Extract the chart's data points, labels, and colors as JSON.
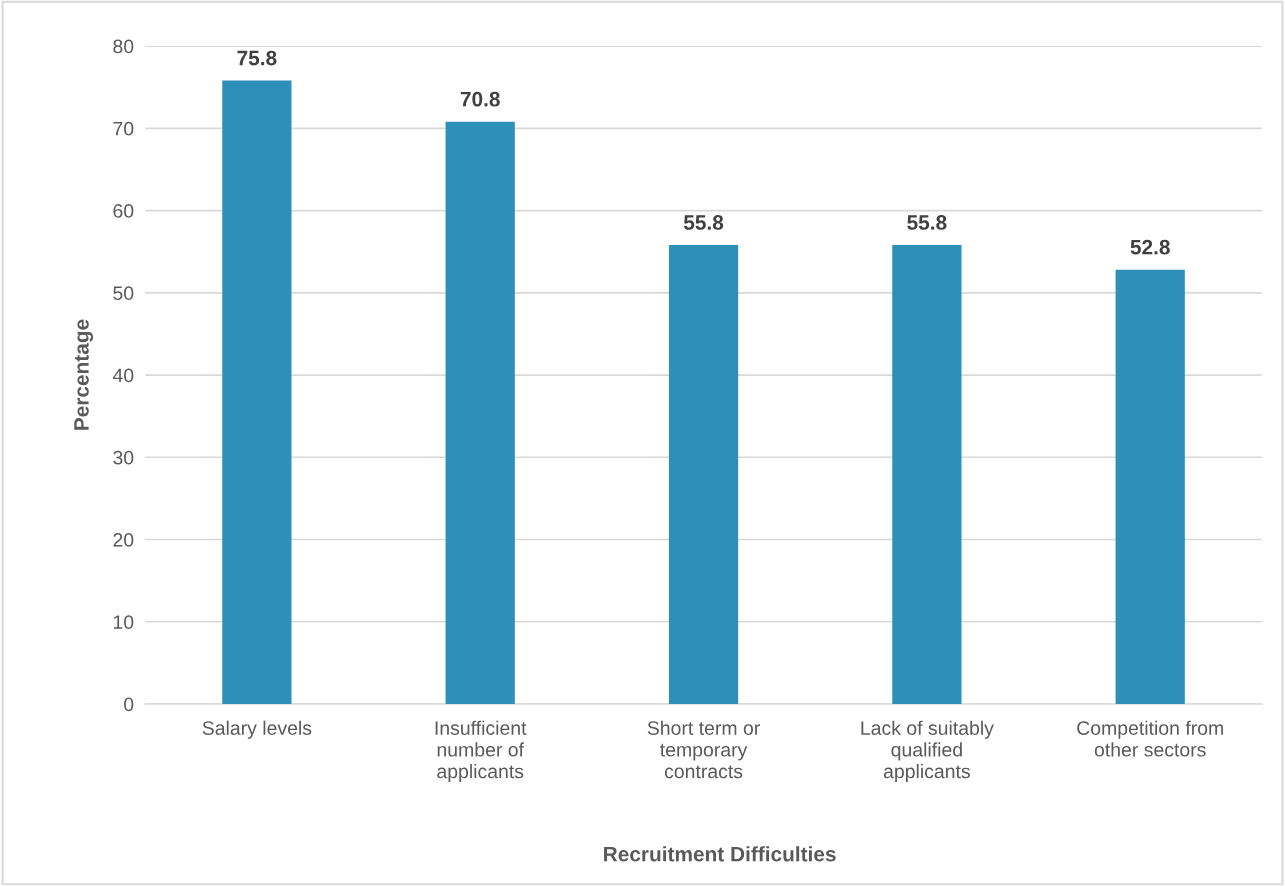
{
  "chart_data": {
    "type": "bar",
    "xlabel": "Recruitment Difficulties",
    "ylabel": "Percentage",
    "categories": [
      "Salary levels",
      "Insufficient\nnumber of\napplicants",
      "Short term or\ntemporary\ncontracts",
      "Lack of suitably\nqualified\napplicants",
      "Competition from\nother sectors"
    ],
    "values": [
      75.8,
      70.8,
      55.8,
      55.8,
      52.8
    ],
    "color": "#2e8fb8",
    "ylim": [
      0,
      80
    ],
    "yticks": [
      0,
      10,
      20,
      30,
      40,
      50,
      60,
      70,
      80
    ],
    "grid": "y",
    "data_labels": true
  }
}
